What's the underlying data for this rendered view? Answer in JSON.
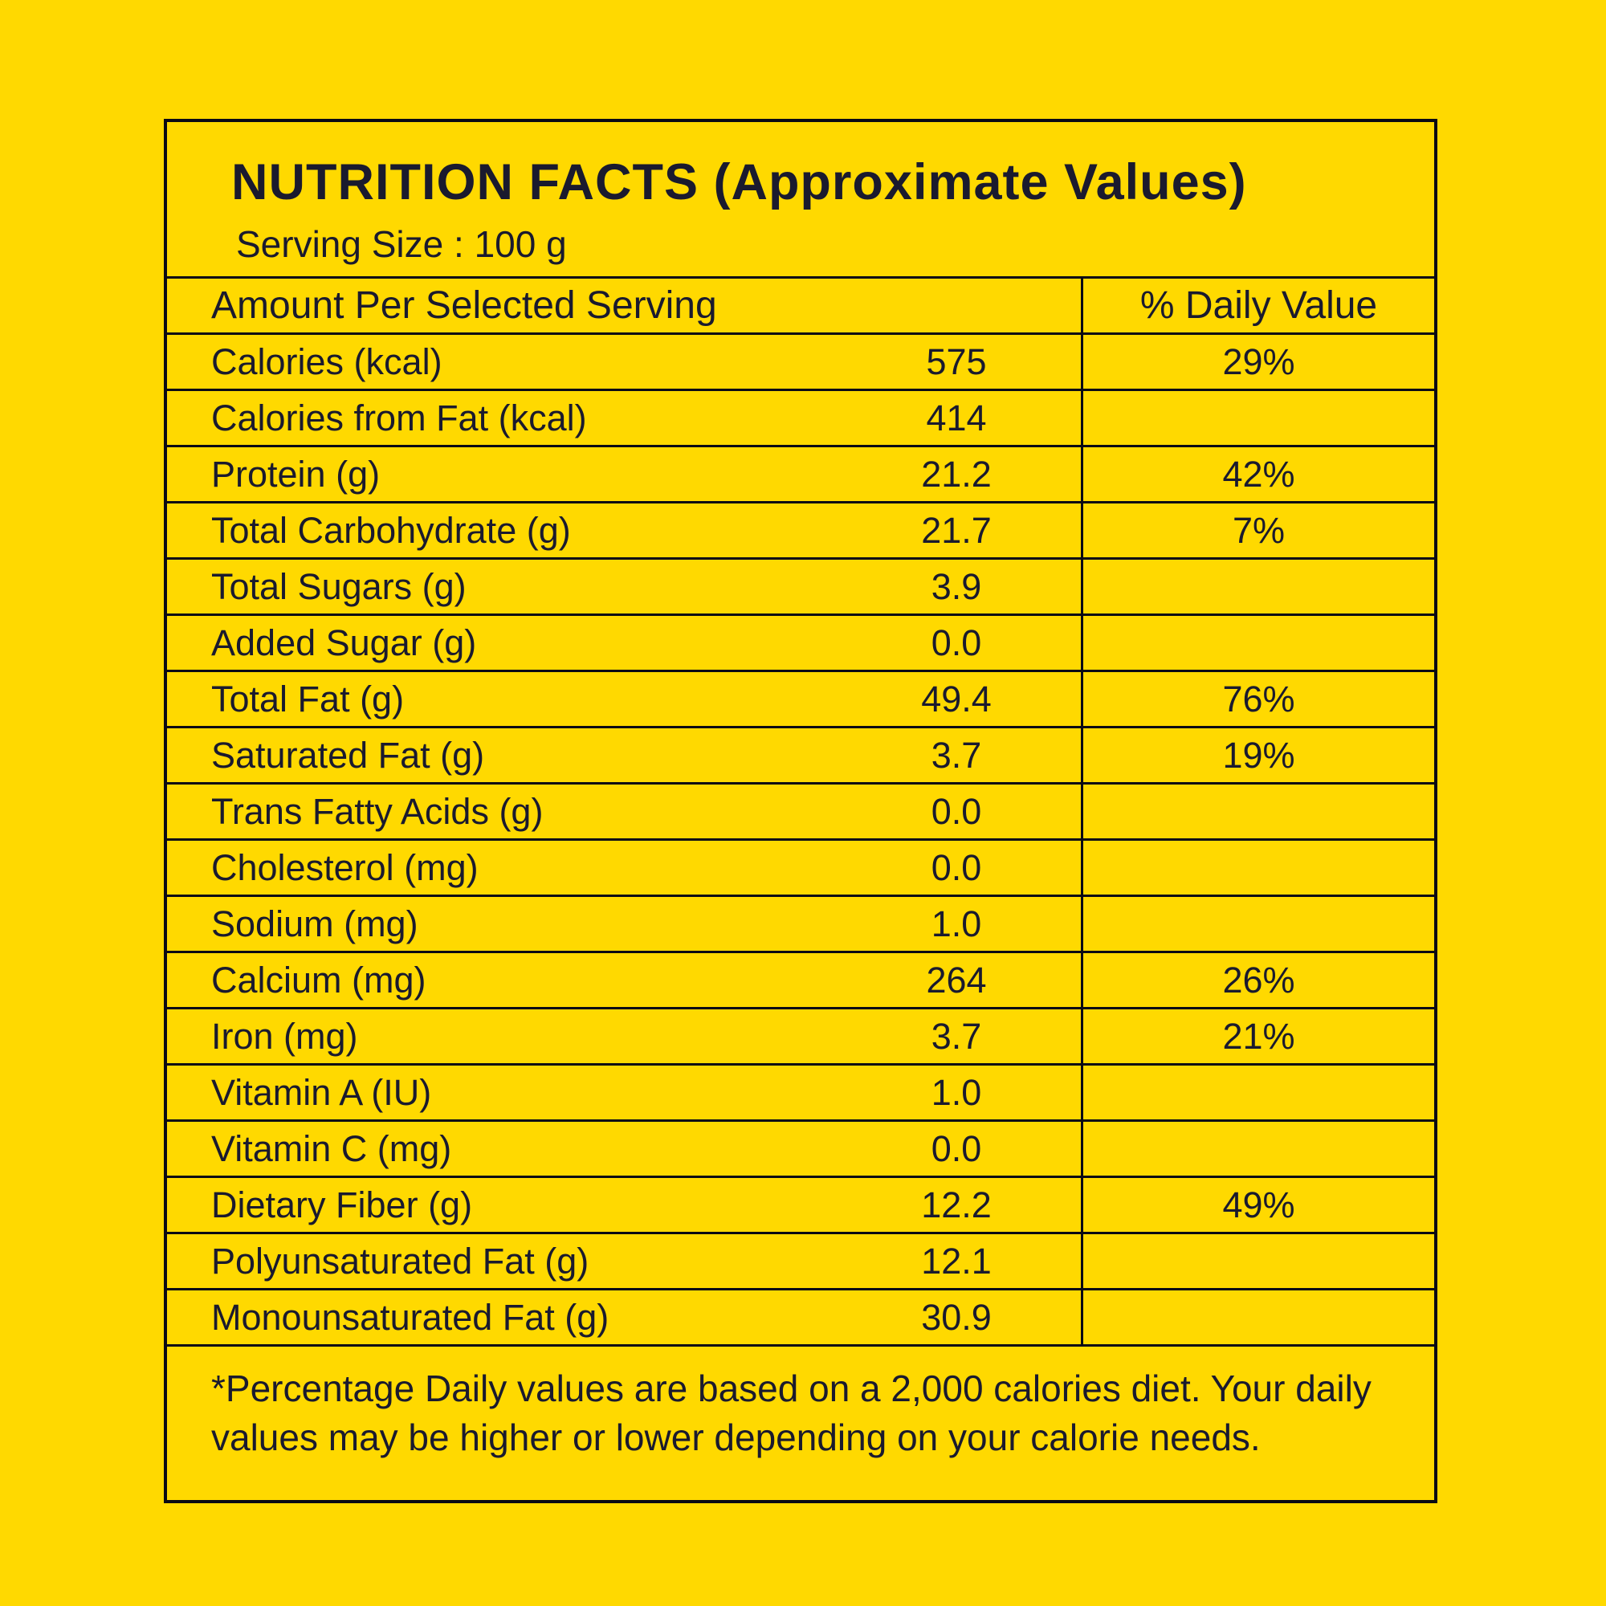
{
  "colors": {
    "background": "#FFD900",
    "text": "#1A1A2E",
    "border": "#0A0A14"
  },
  "label": {
    "title": "NUTRITION FACTS (Approximate Values)",
    "serving_size": "Serving Size : 100 g",
    "header": {
      "amount_column": "Amount Per Selected Serving",
      "daily_value_column": "% Daily Value"
    },
    "rows": [
      {
        "name": "Calories (kcal)",
        "value": "575",
        "daily": "29%"
      },
      {
        "name": "Calories from Fat (kcal)",
        "value": "414",
        "daily": ""
      },
      {
        "name": "Protein (g)",
        "value": "21.2",
        "daily": "42%"
      },
      {
        "name": "Total Carbohydrate (g)",
        "value": "21.7",
        "daily": "7%"
      },
      {
        "name": "Total Sugars (g)",
        "value": "3.9",
        "daily": ""
      },
      {
        "name": "Added Sugar (g)",
        "value": "0.0",
        "daily": ""
      },
      {
        "name": "Total Fat (g)",
        "value": "49.4",
        "daily": "76%"
      },
      {
        "name": "Saturated Fat (g)",
        "value": "3.7",
        "daily": "19%"
      },
      {
        "name": "Trans Fatty Acids (g)",
        "value": "0.0",
        "daily": ""
      },
      {
        "name": "Cholesterol (mg)",
        "value": "0.0",
        "daily": ""
      },
      {
        "name": "Sodium (mg)",
        "value": "1.0",
        "daily": ""
      },
      {
        "name": "Calcium (mg)",
        "value": "264",
        "daily": "26%"
      },
      {
        "name": "Iron (mg)",
        "value": "3.7",
        "daily": "21%"
      },
      {
        "name": "Vitamin A (IU)",
        "value": "1.0",
        "daily": ""
      },
      {
        "name": "Vitamin C (mg)",
        "value": "0.0",
        "daily": ""
      },
      {
        "name": "Dietary Fiber (g)",
        "value": "12.2",
        "daily": "49%"
      },
      {
        "name": "Polyunsaturated Fat (g)",
        "value": "12.1",
        "daily": ""
      },
      {
        "name": "Monounsaturated Fat (g)",
        "value": "30.9",
        "daily": ""
      }
    ],
    "footnote": "*Percentage Daily values are based on a 2,000 calories diet. Your daily values may be higher or lower depending on your calorie needs."
  }
}
